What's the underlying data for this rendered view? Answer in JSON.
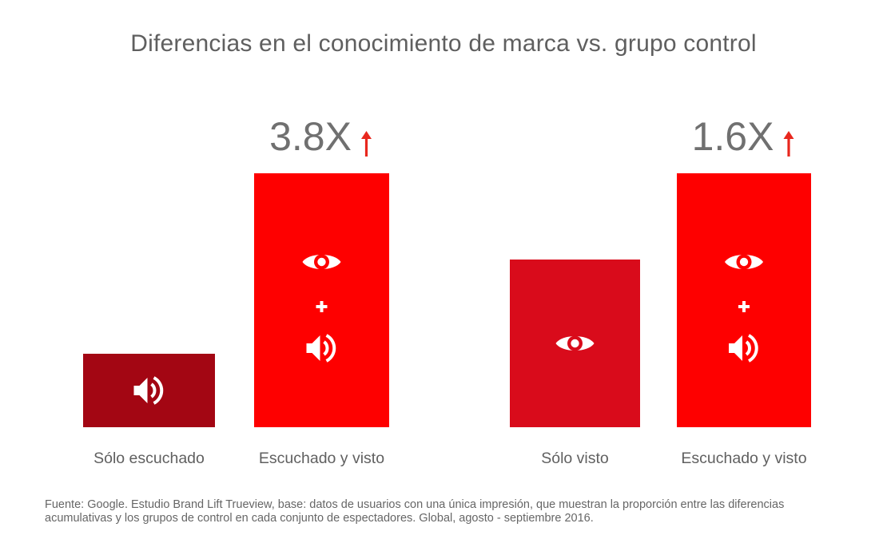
{
  "title": "Diferencias en el conocimiento de marca vs. grupo control",
  "colors": {
    "bar_dark": "#a30613",
    "bar_mid": "#d90b1b",
    "bar_bright": "#fe0000",
    "arrow": "#e8281e",
    "text": "#606060"
  },
  "chart_data": {
    "type": "bar",
    "categories": [
      "Sólo escuchado",
      "Escuchado y visto",
      "Sólo visto",
      "Escuchado y visto"
    ],
    "values": [
      1.0,
      3.8,
      1.0,
      1.6
    ],
    "groups": [
      {
        "multiplier": "3.8X",
        "bars": [
          {
            "label": "Sólo escuchado",
            "icons": [
              "speaker-icon"
            ],
            "color": "#a30613"
          },
          {
            "label": "Escuchado y visto",
            "icons": [
              "eye-icon",
              "plus-icon",
              "speaker-icon"
            ],
            "color": "#fe0000"
          }
        ]
      },
      {
        "multiplier": "1.6X",
        "bars": [
          {
            "label": "Sólo visto",
            "icons": [
              "eye-icon"
            ],
            "color": "#d90b1b"
          },
          {
            "label": "Escuchado y visto",
            "icons": [
              "eye-icon",
              "plus-icon",
              "speaker-icon"
            ],
            "color": "#fe0000"
          }
        ]
      }
    ],
    "ylim": [
      0,
      3.8
    ]
  },
  "footnote": "Fuente: Google. Estudio Brand Lift Trueview, base: datos de usuarios con una única impresión, que muestran la proporción entre las diferencias acumulativas y los grupos de control en cada conjunto de espectadores. Global, agosto - septiembre 2016."
}
